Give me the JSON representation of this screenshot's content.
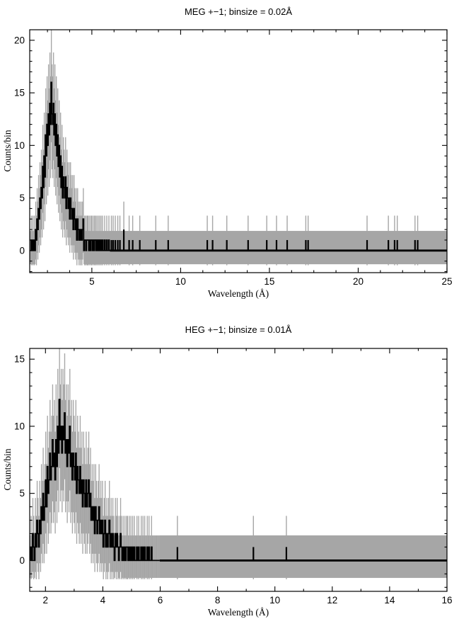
{
  "figure": {
    "background": "#ffffff",
    "data_color": "#000000",
    "error_color": "#a6a6a6"
  },
  "chart_data": [
    {
      "name": "meg",
      "type": "histogram",
      "title": "MEG +−1; binsize = 0.02Å",
      "xlabel": "Wavelength (Å)",
      "ylabel": "Counts/bin",
      "binsize_angstrom": 0.02,
      "xlim": [
        1.5,
        25
      ],
      "ylim": [
        -2.1,
        21
      ],
      "xticks": [
        5,
        10,
        15,
        20,
        25
      ],
      "yticks": [
        0,
        5,
        10,
        15,
        20
      ],
      "xminor_step": 1.25,
      "yminor_step": 1,
      "grid": false,
      "zero_count_error_band": {
        "lo": -1.3,
        "hi": 1.87
      },
      "hist": {
        "start_wavelength": 1.56,
        "bin_step": 0.04,
        "counts": [
          0,
          1,
          0,
          1,
          0,
          1,
          0,
          2,
          1,
          3,
          2,
          4,
          3,
          5,
          4,
          6,
          5,
          8,
          6,
          9,
          7,
          11,
          9,
          12,
          10,
          13,
          11,
          14,
          12,
          16,
          13,
          12,
          14,
          11,
          13,
          10,
          12,
          9,
          11,
          8,
          10,
          7,
          9,
          6,
          8,
          5,
          7,
          6,
          5,
          7,
          4,
          6,
          5,
          4,
          5,
          3,
          5,
          4,
          3,
          4,
          2,
          4,
          3,
          2,
          3,
          1,
          3,
          2,
          1,
          2,
          1,
          2,
          1,
          2,
          3,
          0,
          1,
          1,
          0,
          1,
          1,
          1,
          0,
          1,
          0,
          1,
          1,
          0,
          1,
          0,
          1,
          1,
          0,
          1,
          0,
          1,
          0,
          1,
          0,
          1,
          0,
          1,
          0,
          0,
          1,
          0,
          0,
          1,
          0,
          0,
          1,
          0
        ]
      },
      "tail_spikes": [
        [
          6.1,
          1
        ],
        [
          6.2,
          1
        ],
        [
          6.32,
          1
        ],
        [
          6.46,
          1
        ],
        [
          6.58,
          1
        ],
        [
          6.8,
          2
        ],
        [
          7.1,
          1
        ],
        [
          7.3,
          1
        ],
        [
          7.7,
          1
        ],
        [
          8.6,
          1
        ],
        [
          9.3,
          1
        ],
        [
          11.5,
          1
        ],
        [
          11.8,
          1
        ],
        [
          12.6,
          1
        ],
        [
          13.8,
          1
        ],
        [
          14.85,
          1
        ],
        [
          15.4,
          1
        ],
        [
          16.0,
          1
        ],
        [
          17.05,
          1
        ],
        [
          17.18,
          1
        ],
        [
          20.5,
          1
        ],
        [
          21.7,
          1
        ],
        [
          22.05,
          1
        ],
        [
          22.2,
          1
        ],
        [
          23.2,
          1
        ],
        [
          23.35,
          1
        ]
      ]
    },
    {
      "name": "heg",
      "type": "histogram",
      "title": "HEG +−1; binsize = 0.01Å",
      "xlabel": "Wavelength (Å)",
      "ylabel": "Counts/bin",
      "binsize_angstrom": 0.01,
      "xlim": [
        1.45,
        16
      ],
      "ylim": [
        -2.3,
        15.8
      ],
      "xticks": [
        2,
        4,
        6,
        8,
        10,
        12,
        14,
        16
      ],
      "yticks": [
        0,
        5,
        10,
        15
      ],
      "xminor_step": 1,
      "yminor_step": 1,
      "grid": false,
      "zero_count_error_band": {
        "lo": -1.3,
        "hi": 1.87
      },
      "hist": {
        "start_wavelength": 1.5,
        "bin_step": 0.03,
        "counts": [
          1,
          0,
          2,
          1,
          0,
          2,
          1,
          3,
          2,
          1,
          3,
          2,
          4,
          3,
          5,
          3,
          4,
          6,
          4,
          7,
          5,
          6,
          8,
          6,
          7,
          9,
          7,
          8,
          6,
          9,
          7,
          10,
          8,
          12,
          9,
          10,
          8,
          10,
          9,
          11,
          8,
          9,
          7,
          9,
          8,
          10,
          7,
          8,
          6,
          8,
          7,
          6,
          8,
          5,
          7,
          6,
          5,
          7,
          5,
          6,
          4,
          6,
          5,
          4,
          6,
          4,
          5,
          6,
          4,
          5,
          3,
          4,
          3,
          4,
          2,
          4,
          3,
          2,
          3,
          4,
          2,
          3,
          2,
          3,
          1,
          2,
          3,
          1,
          2,
          1,
          2,
          3,
          1,
          2,
          1,
          2,
          1,
          0,
          2,
          1,
          2,
          1,
          0,
          1,
          2,
          1,
          0,
          1,
          0,
          1,
          0,
          1,
          1,
          0,
          1,
          0,
          1,
          0,
          1,
          0,
          1,
          0,
          0,
          1,
          0,
          1,
          0,
          0,
          1,
          0,
          1,
          0,
          1,
          0,
          0,
          1,
          0,
          1,
          0,
          0,
          1,
          0,
          0,
          0,
          0,
          0,
          0,
          0,
          0,
          0
        ]
      },
      "tail_spikes": [
        [
          6.6,
          1
        ],
        [
          9.25,
          1
        ],
        [
          10.4,
          1
        ]
      ]
    }
  ]
}
